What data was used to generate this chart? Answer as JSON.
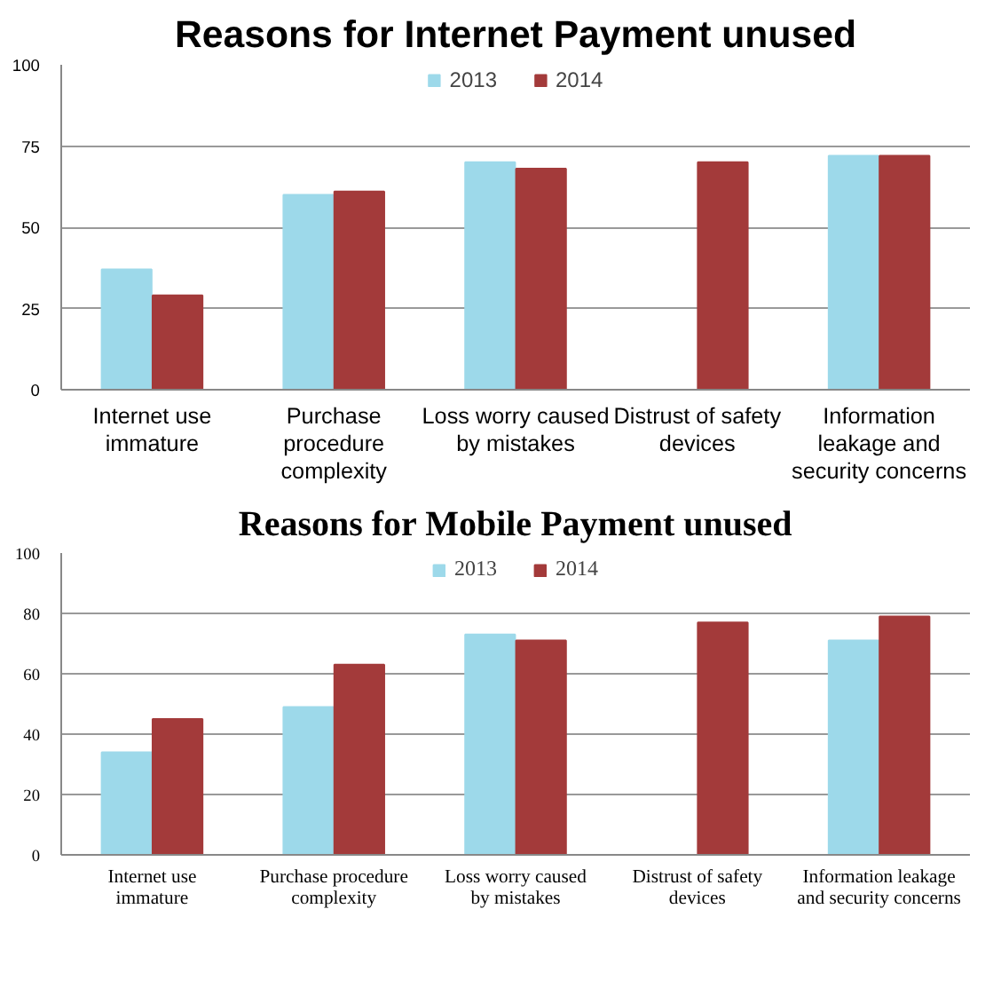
{
  "chart_data": [
    {
      "type": "bar",
      "title": "Reasons for Internet Payment unused",
      "categories": [
        "Internet use\nimmature",
        "Purchase\nprocedure\ncomplexity",
        "Loss worry caused\nby mistakes",
        "Distrust of safety\ndevices",
        "Information\nleakage and\nsecurity concerns"
      ],
      "series": [
        {
          "name": "2013",
          "color": "#9dd9ea",
          "values": [
            37,
            60,
            70,
            null,
            72
          ]
        },
        {
          "name": "2014",
          "color": "#a33a3a",
          "values": [
            29,
            61,
            68,
            70,
            72
          ]
        }
      ],
      "ylim": [
        0,
        100
      ],
      "yticks": [
        0,
        25,
        50,
        75,
        100
      ],
      "grid": "y",
      "legend": "top"
    },
    {
      "type": "bar",
      "title": "Reasons for Mobile Payment unused",
      "categories": [
        "Internet use\nimmature",
        "Purchase procedure\ncomplexity",
        "Loss worry caused\nby mistakes",
        "Distrust of safety\ndevices",
        "Information leakage\nand security concerns"
      ],
      "series": [
        {
          "name": "2013",
          "color": "#9dd9ea",
          "values": [
            34,
            49,
            73,
            null,
            71
          ]
        },
        {
          "name": "2014",
          "color": "#a33a3a",
          "values": [
            45,
            63,
            71,
            77,
            79
          ]
        }
      ],
      "ylim": [
        0,
        100
      ],
      "yticks": [
        0,
        20,
        40,
        60,
        80,
        100
      ],
      "grid": "y",
      "legend": "top"
    }
  ]
}
